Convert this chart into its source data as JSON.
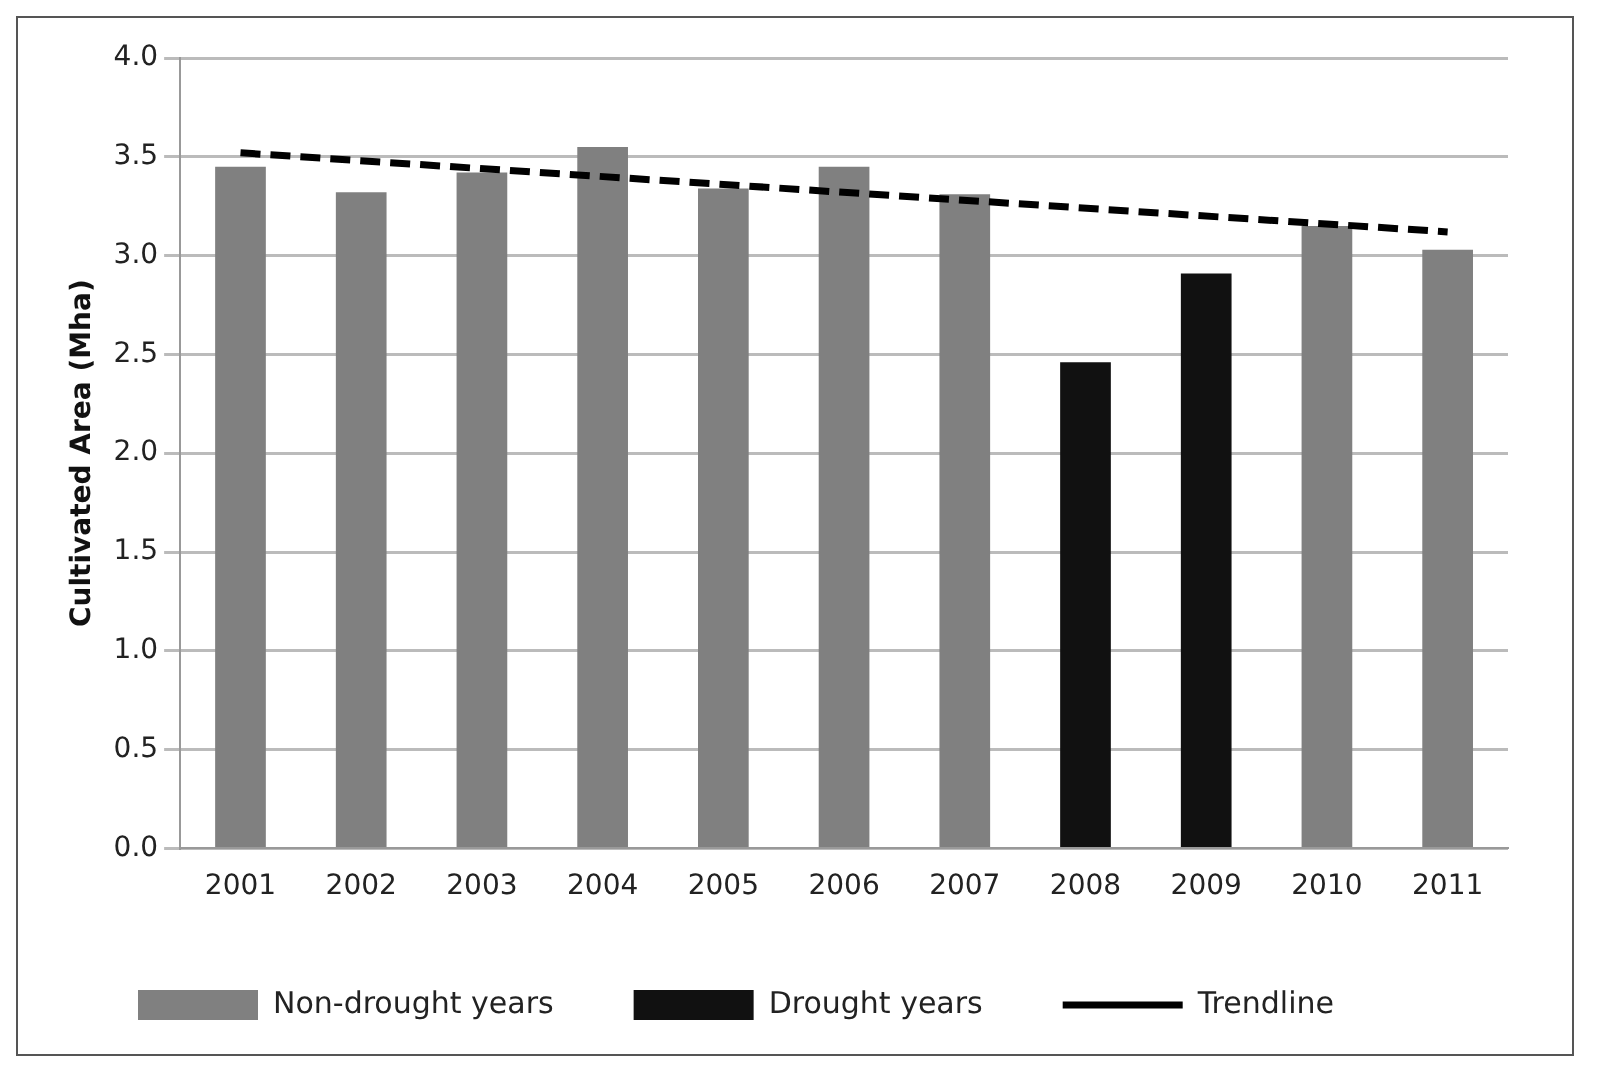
{
  "chart_data": {
    "type": "bar",
    "ylabel": "Cultivated Area (Mha)",
    "categories": [
      "2001",
      "2002",
      "2003",
      "2004",
      "2005",
      "2006",
      "2007",
      "2008",
      "2009",
      "2010",
      "2011"
    ],
    "series": [
      {
        "name": "Non-drought years",
        "color": "#808080",
        "values": [
          3.45,
          3.32,
          3.42,
          3.55,
          3.34,
          3.45,
          3.31,
          null,
          null,
          3.15,
          3.03
        ]
      },
      {
        "name": "Drought years",
        "color": "#111111",
        "values": [
          null,
          null,
          null,
          null,
          null,
          null,
          null,
          2.46,
          2.91,
          null,
          null
        ]
      },
      {
        "name": "Trendline",
        "type": "line",
        "color": "#000000",
        "line_style": "dashed",
        "marker": "none",
        "values": [
          3.52,
          null,
          null,
          null,
          null,
          null,
          null,
          null,
          null,
          null,
          3.12
        ]
      }
    ],
    "stacked": true,
    "ylim": [
      0,
      4
    ],
    "yticks": [
      {
        "value": 0,
        "label": "0.0"
      },
      {
        "value": 0.5,
        "label": "0.5"
      },
      {
        "value": 1,
        "label": "1.0"
      },
      {
        "value": 1.5,
        "label": "1.5"
      },
      {
        "value": 2,
        "label": "2.0"
      },
      {
        "value": 2.5,
        "label": "2.5"
      },
      {
        "value": 3,
        "label": "3.0"
      },
      {
        "value": 3.5,
        "label": "3.5"
      },
      {
        "value": 4,
        "label": "4.0"
      }
    ],
    "grid": "y",
    "legend": "bottom"
  }
}
